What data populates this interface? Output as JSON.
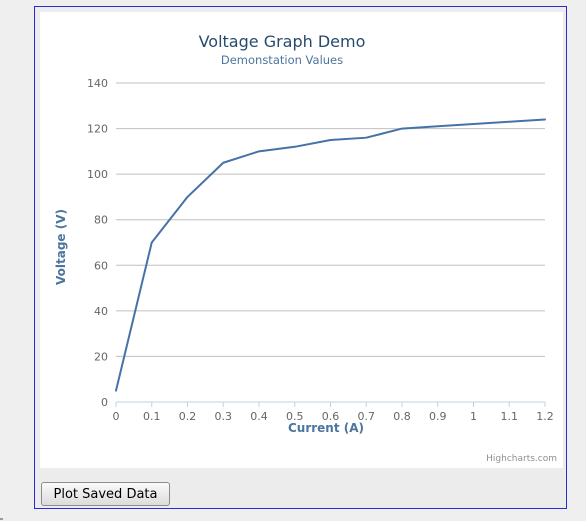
{
  "chart_data": {
    "type": "line",
    "title": "Voltage Graph Demo",
    "subtitle": "Demonstation Values",
    "xlabel": "Current (A)",
    "ylabel": "Voltage (V)",
    "x": [
      0,
      0.1,
      0.2,
      0.3,
      0.4,
      0.5,
      0.6,
      0.7,
      0.8,
      0.9,
      1,
      1.1,
      1.2
    ],
    "x_tick_labels": [
      "0",
      "0.1",
      "0.2",
      "0.3",
      "0.4",
      "0.5",
      "0.6",
      "0.7",
      "0.8",
      "0.9",
      "1",
      "1.1",
      "1.2"
    ],
    "series": [
      {
        "values": [
          5,
          70,
          90,
          105,
          110,
          112,
          115,
          116,
          120,
          121,
          122,
          123,
          124
        ],
        "color": "#4572a7"
      }
    ],
    "y_ticks": [
      0,
      20,
      40,
      60,
      80,
      100,
      120,
      140
    ],
    "ylim": [
      0,
      140
    ],
    "xlim": [
      0,
      1.2
    ],
    "grid": true,
    "legend": "none",
    "credits": "Highcharts.com",
    "title_color": "#274b6d",
    "subtitle_color": "#4d759e",
    "axis_title_color": "#4d759e",
    "line_color": "#4572a7"
  },
  "controls": {
    "plot_button_label": "Plot Saved Data"
  }
}
